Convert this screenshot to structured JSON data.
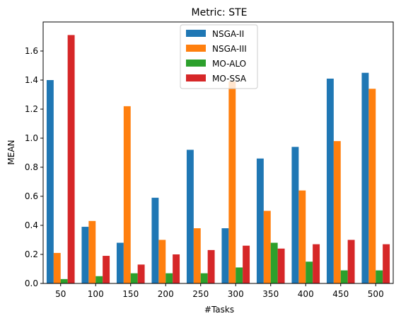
{
  "chart_data": {
    "type": "bar",
    "title": "Metric: STE",
    "xlabel": "#Tasks",
    "ylabel": "MEAN",
    "categories": [
      "50",
      "100",
      "150",
      "200",
      "250",
      "300",
      "350",
      "400",
      "450",
      "500"
    ],
    "ylim": [
      0,
      1.8
    ],
    "yticks": [
      "0.0",
      "0.2",
      "0.4",
      "0.6",
      "0.8",
      "1.0",
      "1.2",
      "1.4",
      "1.6"
    ],
    "grid": false,
    "legend_position": "top-center",
    "series": [
      {
        "name": "NSGA-II",
        "color": "#1f77b4",
        "values": [
          1.4,
          0.39,
          0.28,
          0.59,
          0.92,
          0.38,
          0.86,
          0.94,
          1.41,
          1.45
        ]
      },
      {
        "name": "NSGA-III",
        "color": "#ff7f0e",
        "values": [
          0.21,
          0.43,
          1.22,
          0.3,
          0.38,
          1.39,
          0.5,
          0.64,
          0.98,
          1.34
        ]
      },
      {
        "name": "MO-ALO",
        "color": "#2ca02c",
        "values": [
          0.03,
          0.05,
          0.07,
          0.07,
          0.07,
          0.11,
          0.28,
          0.15,
          0.09,
          0.09
        ]
      },
      {
        "name": "MO-SSA",
        "color": "#d62728",
        "values": [
          1.71,
          0.19,
          0.13,
          0.2,
          0.23,
          0.26,
          0.24,
          0.27,
          0.3,
          0.27
        ]
      }
    ]
  }
}
